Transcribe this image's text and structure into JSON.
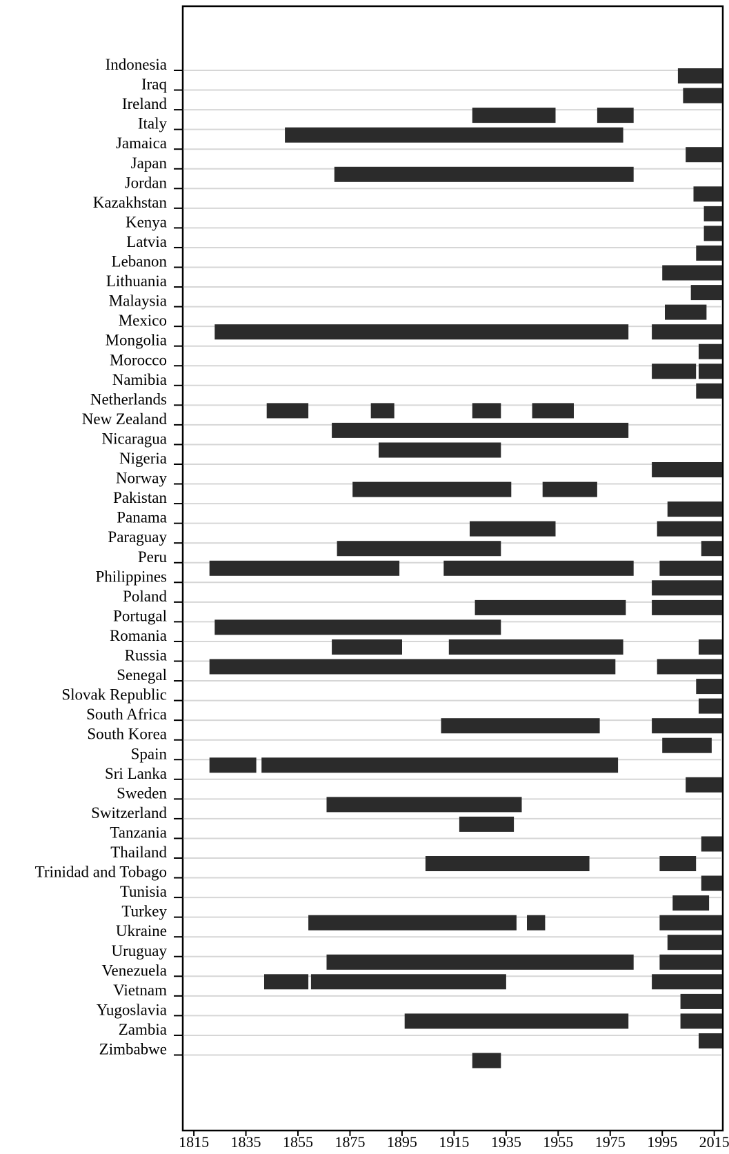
{
  "chart_data": {
    "type": "bar",
    "subtype": "timeline-ranges",
    "title": "",
    "xlabel": "",
    "ylabel": "",
    "xlim": [
      1811,
      2018
    ],
    "x_ticks": [
      1815,
      1835,
      1855,
      1875,
      1895,
      1915,
      1935,
      1955,
      1975,
      1995,
      2015
    ],
    "grid": "horizontal",
    "bar_color": "#2b2b2b",
    "rows": [
      {
        "label": "Indonesia",
        "spans": [
          [
            2001,
            2018
          ]
        ]
      },
      {
        "label": "Iraq",
        "spans": [
          [
            2003,
            2018
          ]
        ]
      },
      {
        "label": "Ireland",
        "spans": [
          [
            1922,
            1954
          ],
          [
            1970,
            1984
          ]
        ]
      },
      {
        "label": "Italy",
        "spans": [
          [
            1850,
            1980
          ]
        ]
      },
      {
        "label": "Jamaica",
        "spans": [
          [
            2004,
            2018
          ]
        ]
      },
      {
        "label": "Japan",
        "spans": [
          [
            1869,
            1984
          ]
        ]
      },
      {
        "label": "Jordan",
        "spans": [
          [
            2007,
            2018
          ]
        ]
      },
      {
        "label": "Kazakhstan",
        "spans": [
          [
            2011,
            2018
          ]
        ]
      },
      {
        "label": "Kenya",
        "spans": [
          [
            2011,
            2018
          ]
        ]
      },
      {
        "label": "Latvia",
        "spans": [
          [
            2008,
            2018
          ]
        ]
      },
      {
        "label": "Lebanon",
        "spans": [
          [
            1995,
            2018
          ]
        ]
      },
      {
        "label": "Lithuania",
        "spans": [
          [
            2006,
            2018
          ]
        ]
      },
      {
        "label": "Malaysia",
        "spans": [
          [
            1996,
            2012
          ]
        ]
      },
      {
        "label": "Mexico",
        "spans": [
          [
            1823,
            1982
          ],
          [
            1991,
            2018
          ]
        ]
      },
      {
        "label": "Mongolia",
        "spans": [
          [
            2009,
            2018
          ]
        ]
      },
      {
        "label": "Morocco",
        "spans": [
          [
            1991,
            2008
          ],
          [
            2009,
            2018
          ]
        ]
      },
      {
        "label": "Namibia",
        "spans": [
          [
            2008,
            2018
          ]
        ]
      },
      {
        "label": "Netherlands",
        "spans": [
          [
            1843,
            1859
          ],
          [
            1883,
            1892
          ],
          [
            1922,
            1933
          ],
          [
            1945,
            1961
          ]
        ]
      },
      {
        "label": "New Zealand",
        "spans": [
          [
            1868,
            1982
          ]
        ]
      },
      {
        "label": "Nicaragua",
        "spans": [
          [
            1886,
            1933
          ]
        ]
      },
      {
        "label": "Nigeria",
        "spans": [
          [
            1991,
            2018
          ]
        ]
      },
      {
        "label": "Norway",
        "spans": [
          [
            1876,
            1937
          ],
          [
            1949,
            1970
          ]
        ]
      },
      {
        "label": "Pakistan",
        "spans": [
          [
            1997,
            2018
          ]
        ]
      },
      {
        "label": "Panama",
        "spans": [
          [
            1921,
            1954
          ],
          [
            1993,
            2018
          ]
        ]
      },
      {
        "label": "Paraguay",
        "spans": [
          [
            1870,
            1933
          ],
          [
            2010,
            2018
          ]
        ]
      },
      {
        "label": "Peru",
        "spans": [
          [
            1821,
            1894
          ],
          [
            1911,
            1984
          ],
          [
            1994,
            2018
          ]
        ]
      },
      {
        "label": "Philippines",
        "spans": [
          [
            1991,
            2018
          ]
        ]
      },
      {
        "label": "Poland",
        "spans": [
          [
            1923,
            1981
          ],
          [
            1991,
            2018
          ]
        ]
      },
      {
        "label": "Portugal",
        "spans": [
          [
            1823,
            1933
          ]
        ]
      },
      {
        "label": "Romania",
        "spans": [
          [
            1868,
            1895
          ],
          [
            1913,
            1980
          ],
          [
            2009,
            2018
          ]
        ]
      },
      {
        "label": "Russia",
        "spans": [
          [
            1821,
            1977
          ],
          [
            1993,
            2018
          ]
        ]
      },
      {
        "label": "Senegal",
        "spans": [
          [
            2008,
            2018
          ]
        ]
      },
      {
        "label": "Slovak Republic",
        "spans": [
          [
            2009,
            2018
          ]
        ]
      },
      {
        "label": "South Africa",
        "spans": [
          [
            1910,
            1971
          ],
          [
            1991,
            2018
          ]
        ]
      },
      {
        "label": "South Korea",
        "spans": [
          [
            1995,
            2014
          ]
        ]
      },
      {
        "label": "Spain",
        "spans": [
          [
            1821,
            1839
          ],
          [
            1841,
            1978
          ]
        ]
      },
      {
        "label": "Sri Lanka",
        "spans": [
          [
            2004,
            2018
          ]
        ]
      },
      {
        "label": "Sweden",
        "spans": [
          [
            1866,
            1941
          ]
        ]
      },
      {
        "label": "Switzerland",
        "spans": [
          [
            1917,
            1938
          ]
        ]
      },
      {
        "label": "Tanzania",
        "spans": [
          [
            2010,
            2018
          ]
        ]
      },
      {
        "label": "Thailand",
        "spans": [
          [
            1904,
            1967
          ],
          [
            1994,
            2008
          ]
        ]
      },
      {
        "label": "Trinidad and Tobago",
        "spans": [
          [
            2010,
            2018
          ]
        ]
      },
      {
        "label": "Tunisia",
        "spans": [
          [
            1999,
            2013
          ]
        ]
      },
      {
        "label": "Turkey",
        "spans": [
          [
            1859,
            1939
          ],
          [
            1943,
            1950
          ],
          [
            1994,
            2018
          ]
        ]
      },
      {
        "label": "Ukraine",
        "spans": [
          [
            1997,
            2018
          ]
        ]
      },
      {
        "label": "Uruguay",
        "spans": [
          [
            1866,
            1984
          ],
          [
            1994,
            2018
          ]
        ]
      },
      {
        "label": "Venezuela",
        "spans": [
          [
            1842,
            1859
          ],
          [
            1860,
            1935
          ],
          [
            1991,
            2018
          ]
        ]
      },
      {
        "label": "Vietnam",
        "spans": [
          [
            2002,
            2018
          ]
        ]
      },
      {
        "label": "Yugoslavia",
        "spans": [
          [
            1896,
            1982
          ],
          [
            2002,
            2018
          ]
        ]
      },
      {
        "label": "Zambia",
        "spans": [
          [
            2009,
            2018
          ]
        ]
      },
      {
        "label": "Zimbabwe",
        "spans": [
          [
            1922,
            1933
          ]
        ]
      }
    ]
  }
}
